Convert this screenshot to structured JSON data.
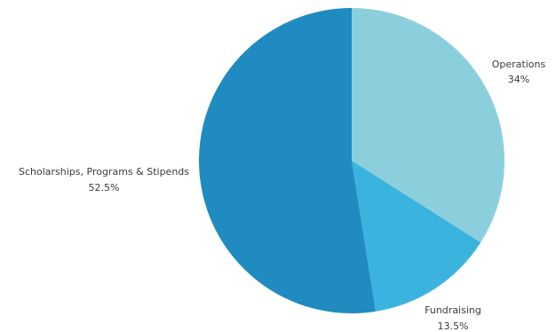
{
  "chart_data": {
    "type": "pie",
    "title": "",
    "start_angle_deg": 0,
    "direction": "clockwise",
    "slices": [
      {
        "label": "Operations",
        "value": 34,
        "value_label": "34%",
        "color": "#8ccfdc"
      },
      {
        "label": "Fundraising",
        "value": 13.5,
        "value_label": "13.5%",
        "color": "#3bb3df"
      },
      {
        "label": "Scholarships, Programs & Stipends",
        "value": 52.5,
        "value_label": "52.5%",
        "color": "#1f8bc1"
      }
    ],
    "legend": "none",
    "label_placement": "outside"
  }
}
